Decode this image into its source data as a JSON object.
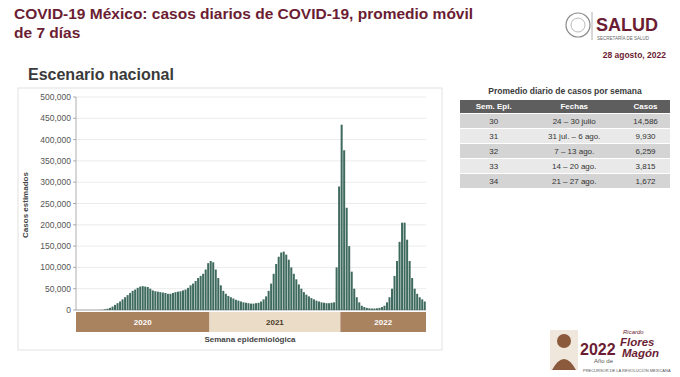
{
  "header": {
    "title": "COVID-19 México: casos diarios de COVID-19, promedio móvil de 7 días",
    "logo": "SALUD",
    "logo_subtitle": "SECRETARÍA DE SALUD",
    "date": "28 agosto, 2022"
  },
  "chart_data": {
    "type": "bar",
    "title": "Escenario nacional",
    "x_label": "Semana epidemiológica",
    "y_label": "Casos estimados",
    "categories": [
      null,
      null,
      null,
      null,
      null,
      null,
      null,
      null,
      null,
      null,
      null,
      null,
      null,
      null,
      null,
      null,
      null,
      null,
      null,
      null,
      null,
      null,
      null,
      null,
      null,
      null,
      null,
      null,
      null,
      null,
      null,
      null,
      null,
      null,
      null,
      null,
      null,
      null,
      null,
      null,
      null,
      null,
      null,
      null,
      null,
      null,
      null,
      null,
      null,
      null,
      null,
      null,
      null,
      null,
      null,
      null,
      null,
      null,
      null,
      null,
      null,
      null,
      null,
      null,
      null,
      null,
      null,
      null,
      null,
      null,
      null,
      null,
      null,
      null,
      null,
      null,
      null,
      null,
      null,
      null,
      null,
      null,
      null,
      null,
      null,
      null,
      null,
      null,
      null,
      null,
      null,
      null,
      null,
      null,
      null,
      null,
      null,
      null,
      null,
      null,
      null,
      null,
      null,
      null,
      null,
      null,
      null,
      null,
      null,
      null,
      null,
      null,
      null,
      null,
      null,
      null,
      null,
      null,
      null,
      null,
      null,
      null,
      null,
      null,
      null,
      null,
      null,
      null,
      null,
      null,
      null,
      null,
      null,
      null,
      null,
      null,
      null,
      null,
      null
    ],
    "values": [
      0,
      0,
      0,
      0,
      0,
      0,
      0,
      0,
      0,
      100,
      500,
      1500,
      3000,
      5000,
      8000,
      12000,
      16000,
      20000,
      25000,
      30000,
      35000,
      40000,
      45000,
      48000,
      52000,
      55000,
      56000,
      55000,
      54000,
      50000,
      46000,
      44000,
      43000,
      42000,
      41000,
      40000,
      38000,
      38000,
      40000,
      42000,
      43000,
      44000,
      46000,
      48000,
      52000,
      58000,
      62000,
      68000,
      75000,
      80000,
      85000,
      95000,
      110000,
      115000,
      112000,
      95000,
      75000,
      58000,
      45000,
      38000,
      33000,
      30000,
      27000,
      24000,
      22000,
      20000,
      18000,
      17000,
      16000,
      15000,
      15000,
      16000,
      17000,
      20000,
      25000,
      32000,
      45000,
      62000,
      85000,
      108000,
      125000,
      135000,
      137000,
      130000,
      118000,
      100000,
      85000,
      72000,
      60000,
      50000,
      42000,
      36000,
      32000,
      28000,
      25000,
      22000,
      20000,
      18000,
      17000,
      16000,
      16000,
      17000,
      18000,
      100000,
      290000,
      435000,
      375000,
      240000,
      150000,
      90000,
      50000,
      30000,
      18000,
      10000,
      7000,
      5000,
      4000,
      3500,
      3500,
      4000,
      5000,
      7000,
      10000,
      18000,
      30000,
      50000,
      80000,
      115000,
      160000,
      205000,
      205000,
      165000,
      115000,
      75000,
      50000,
      38000,
      30000,
      25000,
      20000
    ],
    "x_groups": [
      {
        "label": "2020",
        "count": 53
      },
      {
        "label": "2021",
        "count": 52
      },
      {
        "label": "2022",
        "count": 34
      }
    ],
    "color": "#3f6b5f",
    "ylim": [
      0,
      500000
    ],
    "yticks": [
      0,
      {
        "value": 50000,
        "label": "50,000"
      },
      {
        "value": 100000,
        "label": "100,000"
      },
      {
        "value": 150000,
        "label": "150,000"
      },
      {
        "value": 200000,
        "label": "200,000"
      },
      {
        "value": 250000,
        "label": "250,000"
      },
      {
        "value": 300000,
        "label": "300,000"
      },
      {
        "value": 350000,
        "label": "350,000"
      },
      {
        "value": 400000,
        "label": "400,000"
      },
      {
        "value": 450000,
        "label": "450,000"
      },
      {
        "value": 500000,
        "label": "500,000"
      }
    ],
    "grid": true
  },
  "table": {
    "title": "Promedio diario de casos por semana",
    "columns": [
      "Sem. Epi.",
      "Fechas",
      "Casos"
    ],
    "rows": [
      [
        "30",
        "24 – 30 julio",
        "14,586"
      ],
      [
        "31",
        "31 jul. – 6 ago.",
        "9,930"
      ],
      [
        "32",
        "7 – 13 ago.",
        "6,259"
      ],
      [
        "33",
        "14 – 20 ago.",
        "3,815"
      ],
      [
        "34",
        "21 – 27 ago.",
        "1,672"
      ]
    ]
  },
  "footer_logo": {
    "year": "2022",
    "prefix": "Año de",
    "name_first": "Ricardo",
    "name_last": [
      "Flores",
      "Magón"
    ],
    "caption": "PRECURSOR DE LA REVOLUCIÓN MEXICANA"
  }
}
